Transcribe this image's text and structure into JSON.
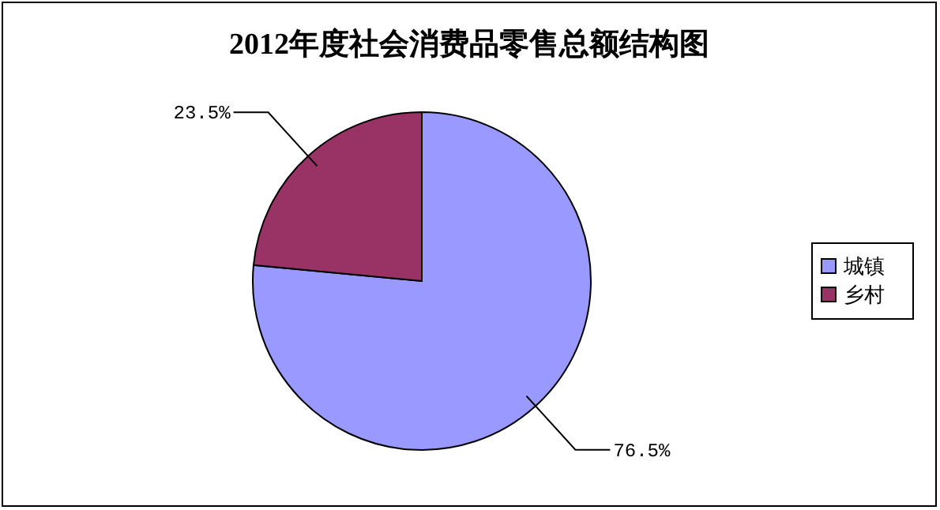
{
  "chart_data": {
    "type": "pie",
    "title": "2012年度社会消费品零售总额结构图",
    "categories": [
      "城镇",
      "乡村"
    ],
    "values": [
      76.5,
      23.5
    ],
    "colors": [
      "#9999ff",
      "#993366"
    ],
    "value_labels": [
      "76.5%",
      "23.5%"
    ],
    "legend": "right"
  }
}
